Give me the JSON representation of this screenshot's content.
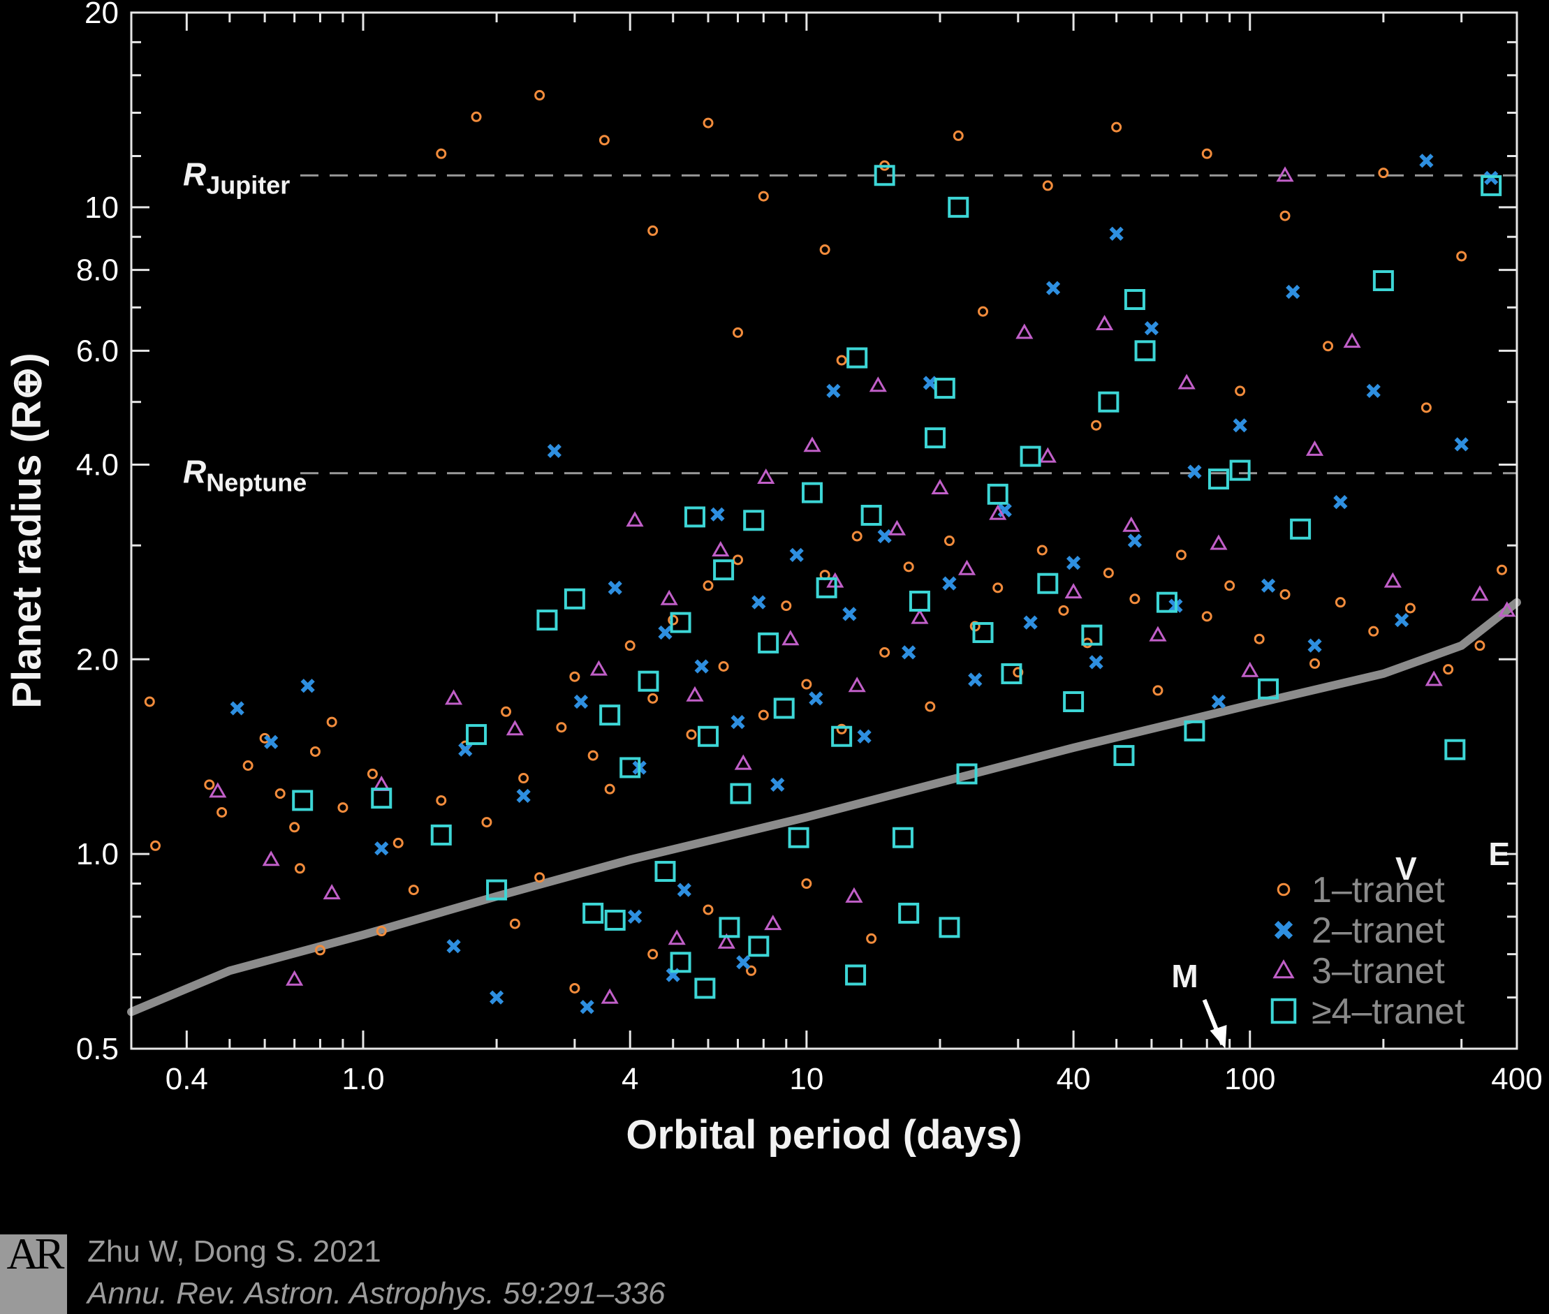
{
  "chart_data": {
    "type": "scatter",
    "xlabel": "Orbital period (days)",
    "ylabel": "Planet radius (R⊕)",
    "x_scale": "log",
    "y_scale": "log",
    "xlim": [
      0.3,
      400
    ],
    "ylim": [
      0.5,
      20
    ],
    "x_ticks": [
      "0.4",
      "1.0",
      "4",
      "10",
      "40",
      "100",
      "400"
    ],
    "x_tick_values": [
      0.4,
      1.0,
      4,
      10,
      40,
      100,
      400
    ],
    "y_ticks": [
      "0.5",
      "1.0",
      "2.0",
      "4.0",
      "6.0",
      "8.0",
      "10",
      "20"
    ],
    "y_tick_values": [
      0.5,
      1.0,
      2.0,
      4.0,
      6.0,
      8.0,
      10,
      20
    ],
    "reference_lines": [
      {
        "label_main": "R",
        "label_sub": "Jupiter",
        "y": 11.2
      },
      {
        "label_main": "R",
        "label_sub": "Neptune",
        "y": 3.88
      }
    ],
    "detection_limit_curve": [
      [
        0.3,
        0.57
      ],
      [
        0.5,
        0.66
      ],
      [
        1.0,
        0.75
      ],
      [
        2.0,
        0.86
      ],
      [
        4.0,
        0.98
      ],
      [
        10,
        1.14
      ],
      [
        20,
        1.29
      ],
      [
        40,
        1.46
      ],
      [
        100,
        1.7
      ],
      [
        200,
        1.9
      ],
      [
        300,
        2.1
      ],
      [
        400,
        2.45
      ]
    ],
    "solar_system_planets": [
      {
        "label": "M",
        "x": 88,
        "y": 0.38
      },
      {
        "label": "V",
        "x": 225,
        "y": 0.95
      },
      {
        "label": "E",
        "x": 365,
        "y": 1.0
      }
    ],
    "legend": [
      "1–tranet",
      "2–tranet",
      "3–tranet",
      "≥4–tranet"
    ],
    "legend_position": "bottom-right",
    "series": [
      {
        "name": "1–tranet",
        "marker": "circle",
        "color": "#f28c3c",
        "points": [
          [
            0.33,
            1.72
          ],
          [
            0.34,
            1.03
          ],
          [
            0.45,
            1.28
          ],
          [
            0.48,
            1.16
          ],
          [
            0.55,
            1.37
          ],
          [
            0.6,
            1.51
          ],
          [
            0.65,
            1.24
          ],
          [
            0.7,
            1.1
          ],
          [
            0.72,
            0.95
          ],
          [
            0.78,
            1.44
          ],
          [
            0.85,
            1.6
          ],
          [
            0.9,
            1.18
          ],
          [
            1.05,
            1.33
          ],
          [
            1.2,
            1.04
          ],
          [
            1.3,
            0.88
          ],
          [
            1.5,
            1.21
          ],
          [
            1.7,
            1.47
          ],
          [
            1.9,
            1.12
          ],
          [
            2.1,
            1.66
          ],
          [
            2.3,
            1.31
          ],
          [
            2.5,
            0.92
          ],
          [
            2.8,
            1.57
          ],
          [
            3.0,
            1.88
          ],
          [
            3.3,
            1.42
          ],
          [
            3.6,
            1.26
          ],
          [
            4.0,
            2.1
          ],
          [
            4.5,
            1.74
          ],
          [
            5.0,
            2.3
          ],
          [
            5.5,
            1.53
          ],
          [
            6.0,
            2.6
          ],
          [
            6.5,
            1.95
          ],
          [
            7.0,
            2.85
          ],
          [
            8.0,
            1.64
          ],
          [
            9.0,
            2.42
          ],
          [
            10,
            1.83
          ],
          [
            11,
            2.7
          ],
          [
            12,
            1.56
          ],
          [
            13,
            3.1
          ],
          [
            15,
            2.05
          ],
          [
            17,
            2.78
          ],
          [
            19,
            1.69
          ],
          [
            21,
            3.05
          ],
          [
            24,
            2.25
          ],
          [
            27,
            2.58
          ],
          [
            30,
            1.91
          ],
          [
            34,
            2.95
          ],
          [
            38,
            2.38
          ],
          [
            43,
            2.12
          ],
          [
            48,
            2.72
          ],
          [
            55,
            2.48
          ],
          [
            62,
            1.79
          ],
          [
            70,
            2.9
          ],
          [
            80,
            2.33
          ],
          [
            90,
            2.6
          ],
          [
            105,
            2.15
          ],
          [
            120,
            2.52
          ],
          [
            140,
            1.97
          ],
          [
            160,
            2.45
          ],
          [
            190,
            2.21
          ],
          [
            230,
            2.4
          ],
          [
            280,
            1.93
          ],
          [
            330,
            2.1
          ],
          [
            370,
            2.75
          ],
          [
            1.5,
            12.1
          ],
          [
            1.8,
            13.8
          ],
          [
            2.5,
            14.9
          ],
          [
            3.5,
            12.7
          ],
          [
            4.5,
            9.2
          ],
          [
            6,
            13.5
          ],
          [
            8,
            10.4
          ],
          [
            11,
            8.6
          ],
          [
            15,
            11.6
          ],
          [
            22,
            12.9
          ],
          [
            35,
            10.8
          ],
          [
            50,
            13.3
          ],
          [
            80,
            12.1
          ],
          [
            120,
            9.7
          ],
          [
            200,
            11.3
          ],
          [
            300,
            8.4
          ],
          [
            7,
            6.4
          ],
          [
            12,
            5.8
          ],
          [
            25,
            6.9
          ],
          [
            45,
            4.6
          ],
          [
            95,
            5.2
          ],
          [
            150,
            6.1
          ],
          [
            250,
            4.9
          ],
          [
            2.2,
            0.78
          ],
          [
            3.0,
            0.62
          ],
          [
            4.5,
            0.7
          ],
          [
            6.0,
            0.82
          ],
          [
            7.5,
            0.66
          ],
          [
            10,
            0.9
          ],
          [
            14,
            0.74
          ],
          [
            1.1,
            0.76
          ],
          [
            0.8,
            0.71
          ]
        ]
      },
      {
        "name": "2–tranet",
        "marker": "x",
        "color": "#2e8fe0",
        "points": [
          [
            0.52,
            1.68
          ],
          [
            0.62,
            1.49
          ],
          [
            0.75,
            1.82
          ],
          [
            1.1,
            1.02
          ],
          [
            1.7,
            1.45
          ],
          [
            2.3,
            1.23
          ],
          [
            2.7,
            4.2
          ],
          [
            3.1,
            1.72
          ],
          [
            3.7,
            2.58
          ],
          [
            4.2,
            1.36
          ],
          [
            4.8,
            2.2
          ],
          [
            5.3,
            0.88
          ],
          [
            5.8,
            1.95
          ],
          [
            6.3,
            3.35
          ],
          [
            7.0,
            1.6
          ],
          [
            7.8,
            2.45
          ],
          [
            8.6,
            1.28
          ],
          [
            9.5,
            2.9
          ],
          [
            10.5,
            1.74
          ],
          [
            11.5,
            5.2
          ],
          [
            12.5,
            2.35
          ],
          [
            13.5,
            1.52
          ],
          [
            15,
            3.1
          ],
          [
            17,
            2.05
          ],
          [
            19,
            5.35
          ],
          [
            21,
            2.62
          ],
          [
            24,
            1.86
          ],
          [
            28,
            3.4
          ],
          [
            32,
            2.28
          ],
          [
            36,
            7.5
          ],
          [
            40,
            2.82
          ],
          [
            45,
            1.98
          ],
          [
            50,
            9.1
          ],
          [
            55,
            3.05
          ],
          [
            60,
            6.5
          ],
          [
            68,
            2.42
          ],
          [
            75,
            3.9
          ],
          [
            85,
            1.72
          ],
          [
            95,
            4.6
          ],
          [
            110,
            2.6
          ],
          [
            125,
            7.4
          ],
          [
            140,
            2.1
          ],
          [
            160,
            3.5
          ],
          [
            190,
            5.2
          ],
          [
            220,
            2.3
          ],
          [
            250,
            11.8
          ],
          [
            300,
            4.3
          ],
          [
            350,
            11.1
          ],
          [
            2.0,
            0.6
          ],
          [
            3.2,
            0.58
          ],
          [
            5.0,
            0.65
          ],
          [
            7.2,
            0.68
          ],
          [
            1.6,
            0.72
          ],
          [
            4.1,
            0.8
          ]
        ]
      },
      {
        "name": "3–tranet",
        "marker": "triangle",
        "color": "#c15fc8",
        "points": [
          [
            0.47,
            1.25
          ],
          [
            0.62,
            0.98
          ],
          [
            0.7,
            0.64
          ],
          [
            0.85,
            0.87
          ],
          [
            1.1,
            1.28
          ],
          [
            1.6,
            1.74
          ],
          [
            2.2,
            1.56
          ],
          [
            3.4,
            1.93
          ],
          [
            4.1,
            3.28
          ],
          [
            4.9,
            2.48
          ],
          [
            5.6,
            1.76
          ],
          [
            6.4,
            2.95
          ],
          [
            7.2,
            1.38
          ],
          [
            8.1,
            3.82
          ],
          [
            9.2,
            2.15
          ],
          [
            10.3,
            4.28
          ],
          [
            11.6,
            2.64
          ],
          [
            13,
            1.82
          ],
          [
            14.5,
            5.3
          ],
          [
            16,
            3.18
          ],
          [
            18,
            2.32
          ],
          [
            20,
            3.68
          ],
          [
            23,
            2.76
          ],
          [
            27,
            3.36
          ],
          [
            31,
            6.4
          ],
          [
            35,
            4.12
          ],
          [
            40,
            2.54
          ],
          [
            47,
            6.6
          ],
          [
            54,
            3.22
          ],
          [
            62,
            2.18
          ],
          [
            72,
            5.35
          ],
          [
            85,
            3.02
          ],
          [
            100,
            1.92
          ],
          [
            120,
            11.2
          ],
          [
            140,
            4.22
          ],
          [
            170,
            6.2
          ],
          [
            210,
            2.64
          ],
          [
            260,
            1.86
          ],
          [
            330,
            2.52
          ],
          [
            380,
            2.38
          ],
          [
            3.6,
            0.6
          ],
          [
            5.1,
            0.74
          ],
          [
            6.6,
            0.73
          ],
          [
            8.4,
            0.78
          ],
          [
            12.8,
            0.86
          ]
        ]
      },
      {
        "name": "≥4–tranet",
        "marker": "square",
        "color": "#3dd6d6",
        "points": [
          [
            0.73,
            1.21
          ],
          [
            1.1,
            1.22
          ],
          [
            1.5,
            1.07
          ],
          [
            1.8,
            1.53
          ],
          [
            2.0,
            0.88
          ],
          [
            2.6,
            2.3
          ],
          [
            3.0,
            2.48
          ],
          [
            3.3,
            0.81
          ],
          [
            3.6,
            1.64
          ],
          [
            4.0,
            1.36
          ],
          [
            4.4,
            1.85
          ],
          [
            4.8,
            0.94
          ],
          [
            5.2,
            2.28
          ],
          [
            5.6,
            3.32
          ],
          [
            6.0,
            1.52
          ],
          [
            6.5,
            2.75
          ],
          [
            7.1,
            1.24
          ],
          [
            7.6,
            3.28
          ],
          [
            8.2,
            2.12
          ],
          [
            8.9,
            1.68
          ],
          [
            9.6,
            1.06
          ],
          [
            10.3,
            3.62
          ],
          [
            11.1,
            2.58
          ],
          [
            12,
            1.52
          ],
          [
            13,
            5.85
          ],
          [
            14,
            3.34
          ],
          [
            15,
            11.2
          ],
          [
            16.5,
            1.06
          ],
          [
            18,
            2.46
          ],
          [
            19.5,
            4.4
          ],
          [
            20.5,
            5.25
          ],
          [
            22,
            10.0
          ],
          [
            23,
            1.33
          ],
          [
            25,
            2.2
          ],
          [
            27,
            3.6
          ],
          [
            29,
            1.9
          ],
          [
            32,
            4.12
          ],
          [
            35,
            2.62
          ],
          [
            40,
            1.72
          ],
          [
            44,
            2.18
          ],
          [
            48,
            5.0
          ],
          [
            52,
            1.42
          ],
          [
            55,
            7.2
          ],
          [
            58,
            6.0
          ],
          [
            65,
            2.45
          ],
          [
            75,
            1.55
          ],
          [
            85,
            3.8
          ],
          [
            95,
            3.92
          ],
          [
            110,
            1.8
          ],
          [
            130,
            3.18
          ],
          [
            200,
            7.7
          ],
          [
            290,
            1.45
          ],
          [
            350,
            10.8
          ],
          [
            3.7,
            0.79
          ],
          [
            5.2,
            0.68
          ],
          [
            5.9,
            0.62
          ],
          [
            6.7,
            0.77
          ],
          [
            7.8,
            0.72
          ],
          [
            12.9,
            0.65
          ],
          [
            17,
            0.81
          ],
          [
            21,
            0.77
          ]
        ]
      }
    ]
  },
  "credit": {
    "logo_text": "AR",
    "line1": "Zhu W, Dong S. 2021",
    "line2": "Annu. Rev. Astron. Astrophys. 59:291–336"
  }
}
